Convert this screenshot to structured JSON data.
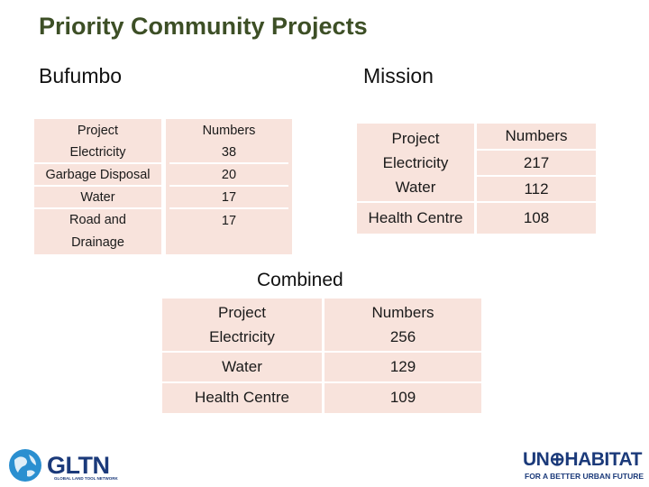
{
  "title": "Priority Community Projects",
  "sections": {
    "bufumbo": "Bufumbo",
    "mission": "Mission",
    "combined": "Combined"
  },
  "bufumbo": {
    "project_header": "Project",
    "numbers_header": "Numbers",
    "rows": [
      {
        "project": "Electricity",
        "number": "38"
      },
      {
        "project": "Garbage Disposal",
        "number": "20"
      },
      {
        "project": "Water",
        "number": "17"
      },
      {
        "project": "Road and Drainage",
        "number": "17"
      }
    ]
  },
  "mission": {
    "project_header": "Project",
    "numbers_header": "Numbers",
    "rows": [
      {
        "project": "Electricity",
        "number": "217"
      },
      {
        "project": "Water",
        "number": "112"
      },
      {
        "project": "Health Centre",
        "number": "108"
      }
    ]
  },
  "combined": {
    "project_header": "Project",
    "numbers_header": "Numbers",
    "rows": [
      {
        "project": "Electricity",
        "number": "256"
      },
      {
        "project": "Water",
        "number": "129"
      },
      {
        "project": "Health Centre",
        "number": "109"
      }
    ]
  },
  "logos": {
    "gltn": {
      "name": "GLTN",
      "subtitle": "GLOBAL LAND TOOL NETWORK"
    },
    "unhabitat": {
      "name": "UN⊕HABITAT",
      "tagline": "FOR A BETTER URBAN FUTURE"
    }
  },
  "colors": {
    "title": "#3d4f26",
    "table_fill": "#f8e3dc",
    "logo_blue": "#1b3a7a"
  }
}
